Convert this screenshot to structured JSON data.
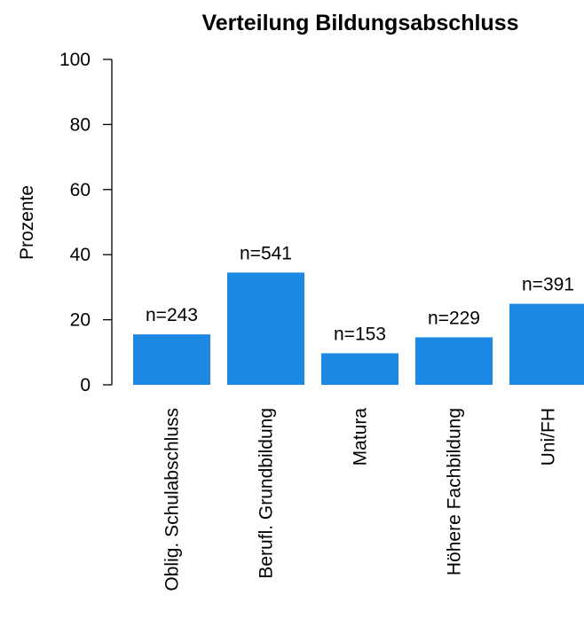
{
  "chart_data": {
    "type": "bar",
    "title": "Verteilung Bildungsabschluss",
    "xlabel": "",
    "ylabel": "Prozente",
    "ylim": [
      0,
      100
    ],
    "yticks": [
      "0",
      "20",
      "40",
      "60",
      "80",
      "100"
    ],
    "grid": false,
    "legend": "none",
    "categories": [
      "Oblig. Schulabschluss",
      "Berufl. Grundbildung",
      "Matura",
      "Höhere Fachbildung",
      "Uni/FH"
    ],
    "values": [
      15.5,
      34.5,
      9.7,
      14.6,
      24.9
    ],
    "data_labels": [
      "n=243",
      "n=541",
      "n=153",
      "n=229",
      "n=391"
    ],
    "bar_color": "#1e88e5"
  }
}
